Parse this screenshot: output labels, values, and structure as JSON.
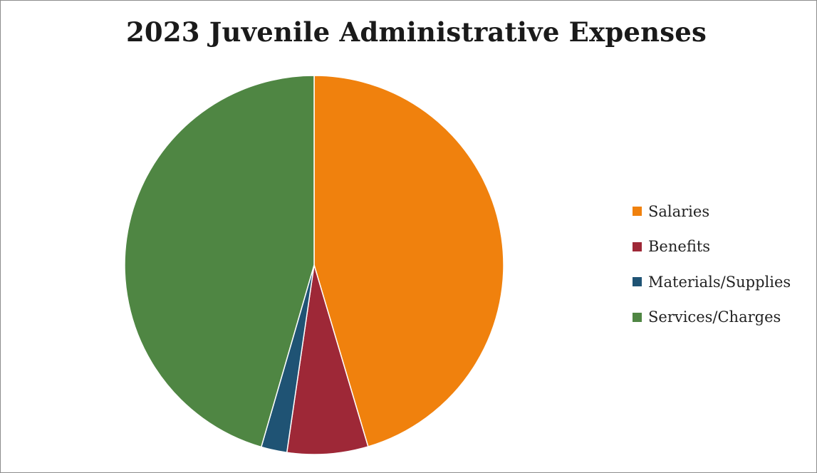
{
  "chart_data": {
    "type": "pie",
    "title": "2023 Juvenile Administrative Expenses",
    "legend_position": "right",
    "slices": [
      {
        "label": "Salaries",
        "value": 45.4,
        "color": "#F0810D"
      },
      {
        "label": "Benefits",
        "value": 6.9,
        "color": "#9E2837"
      },
      {
        "label": "Materials/Supplies",
        "value": 2.2,
        "color": "#1F5374"
      },
      {
        "label": "Services/Charges",
        "value": 45.5,
        "color": "#4F8643"
      }
    ]
  }
}
